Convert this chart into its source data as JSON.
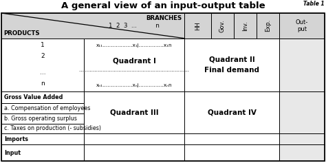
{
  "title": "A general view of an input-output table",
  "title_fontsize": 9.5,
  "bg_color": "#ffffff",
  "gray_bg": "#d4d4d4",
  "lgray_bg": "#e8e8e8",
  "white_bg": "#ffffff",
  "branches_label": "BRANCHES",
  "products_label": "PRODUCTS",
  "header_row_label": "1  2  3  ...          n",
  "rotated_headers": [
    "HH",
    "Gov.",
    "Inv.",
    "Exp."
  ],
  "output_header": "Out-\nput",
  "product_rows": [
    "1",
    "2",
    "...",
    "n"
  ],
  "q1_line1": "x₁₁………………x₁j……………x₁n",
  "q1_label": "Quadrant I",
  "q1_dots": "……………………………………………………………",
  "q1_line4": "xₙ₁………………xₙj……………xₙn",
  "q2_label": "Quadrant II",
  "q2_sublabel": "Final demand",
  "q3_label": "Quadrant III",
  "q4_label": "Quadrant IV",
  "gva_rows": [
    {
      "label": "Gross Value Added",
      "bold": true
    },
    {
      "label": "a. Compensation of employees",
      "bold": false
    },
    {
      "label": "b. Gross operating surplus",
      "bold": false
    },
    {
      "label": "c. Taxes on production (- subsidies)",
      "bold": false
    }
  ],
  "bottom_rows": [
    {
      "label": "Imports",
      "bold": true
    },
    {
      "label": "Input",
      "bold": true
    }
  ],
  "table_label": "Table 1"
}
